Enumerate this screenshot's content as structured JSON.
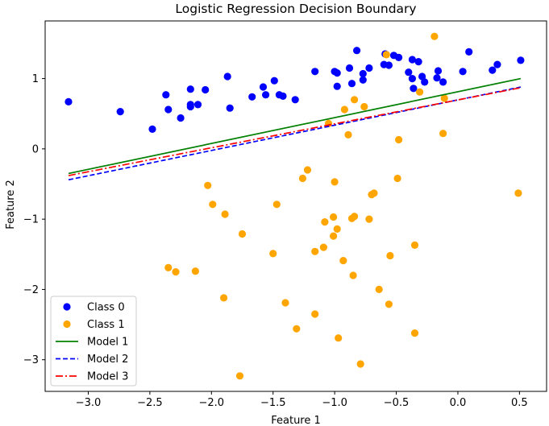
{
  "chart_data": {
    "type": "scatter",
    "title": "Logistic Regression Decision Boundary",
    "xlabel": "Feature 1",
    "ylabel": "Feature 2",
    "xlim": [
      -3.35,
      0.72
    ],
    "ylim": [
      -3.45,
      1.82
    ],
    "xticks": [
      -3.0,
      -2.5,
      -2.0,
      -1.5,
      -1.0,
      -0.5,
      0.0,
      0.5
    ],
    "xtick_labels": [
      "−3.0",
      "−2.5",
      "−2.0",
      "−1.5",
      "−1.0",
      "−0.5",
      "0.0",
      "0.5"
    ],
    "yticks": [
      1,
      0,
      -1,
      -2,
      -3
    ],
    "ytick_labels": [
      "1",
      "0",
      "−1",
      "−2",
      "−3"
    ],
    "grid": false,
    "legend": "lower-left",
    "scatter_series": [
      {
        "name": "Class 0",
        "color": "#0000ff",
        "points": [
          [
            -3.16,
            0.67
          ],
          [
            -2.74,
            0.53
          ],
          [
            -2.48,
            0.28
          ],
          [
            -2.37,
            0.77
          ],
          [
            -2.35,
            0.56
          ],
          [
            -2.25,
            0.44
          ],
          [
            -2.17,
            0.6
          ],
          [
            -2.17,
            0.63
          ],
          [
            -2.17,
            0.85
          ],
          [
            -2.11,
            0.63
          ],
          [
            -2.05,
            0.84
          ],
          [
            -1.87,
            1.03
          ],
          [
            -1.85,
            0.58
          ],
          [
            -1.67,
            0.74
          ],
          [
            -1.58,
            0.88
          ],
          [
            -1.56,
            0.77
          ],
          [
            -1.49,
            0.97
          ],
          [
            -1.45,
            0.77
          ],
          [
            -1.42,
            0.75
          ],
          [
            -1.32,
            0.7
          ],
          [
            -1.16,
            1.1
          ],
          [
            -1.0,
            1.1
          ],
          [
            -0.98,
            1.08
          ],
          [
            -0.98,
            0.89
          ],
          [
            -0.88,
            1.15
          ],
          [
            -0.86,
            0.93
          ],
          [
            -0.82,
            1.4
          ],
          [
            -0.77,
            0.98
          ],
          [
            -0.77,
            1.07
          ],
          [
            -0.72,
            1.15
          ],
          [
            -0.59,
            1.35
          ],
          [
            -0.6,
            1.2
          ],
          [
            -0.56,
            1.19
          ],
          [
            -0.52,
            1.33
          ],
          [
            -0.48,
            1.3
          ],
          [
            -0.4,
            1.09
          ],
          [
            -0.37,
            1.27
          ],
          [
            -0.37,
            1.0
          ],
          [
            -0.36,
            0.86
          ],
          [
            -0.32,
            1.24
          ],
          [
            -0.29,
            1.03
          ],
          [
            -0.27,
            0.95
          ],
          [
            -0.17,
            1.01
          ],
          [
            -0.16,
            1.11
          ],
          [
            -0.12,
            0.95
          ],
          [
            0.04,
            1.1
          ],
          [
            0.09,
            1.38
          ],
          [
            0.28,
            1.12
          ],
          [
            0.32,
            1.2
          ],
          [
            0.51,
            1.26
          ]
        ]
      },
      {
        "name": "Class 1",
        "color": "#ffa500",
        "points": [
          [
            -0.58,
            1.34
          ],
          [
            -0.19,
            1.6
          ],
          [
            -0.31,
            0.81
          ],
          [
            -0.11,
            0.72
          ],
          [
            -0.92,
            0.56
          ],
          [
            -0.84,
            0.7
          ],
          [
            -0.76,
            0.6
          ],
          [
            -1.05,
            0.36
          ],
          [
            -0.89,
            0.2
          ],
          [
            -0.12,
            0.22
          ],
          [
            -0.48,
            0.13
          ],
          [
            -2.03,
            -0.52
          ],
          [
            -1.99,
            -0.79
          ],
          [
            -1.89,
            -0.93
          ],
          [
            -1.75,
            -1.21
          ],
          [
            -1.47,
            -0.79
          ],
          [
            -1.5,
            -1.49
          ],
          [
            -1.26,
            -0.42
          ],
          [
            -1.22,
            -0.3
          ],
          [
            -1.0,
            -0.47
          ],
          [
            -1.08,
            -1.04
          ],
          [
            -1.01,
            -0.97
          ],
          [
            -0.98,
            -1.14
          ],
          [
            -1.16,
            -1.46
          ],
          [
            -1.09,
            -1.4
          ],
          [
            -1.01,
            -1.24
          ],
          [
            -0.93,
            -1.59
          ],
          [
            -0.86,
            -0.99
          ],
          [
            -0.84,
            -0.96
          ],
          [
            -0.72,
            -1.0
          ],
          [
            -0.7,
            -0.65
          ],
          [
            -0.68,
            -0.63
          ],
          [
            -0.49,
            -0.42
          ],
          [
            -0.55,
            -1.52
          ],
          [
            -0.85,
            -1.8
          ],
          [
            -0.64,
            -2.0
          ],
          [
            -0.56,
            -2.21
          ],
          [
            -0.35,
            -1.37
          ],
          [
            0.49,
            -0.63
          ],
          [
            -2.35,
            -1.69
          ],
          [
            -2.29,
            -1.75
          ],
          [
            -2.13,
            -1.74
          ],
          [
            -1.9,
            -2.12
          ],
          [
            -1.4,
            -2.19
          ],
          [
            -1.16,
            -2.35
          ],
          [
            -1.31,
            -2.56
          ],
          [
            -0.35,
            -2.62
          ],
          [
            -0.97,
            -2.69
          ],
          [
            -0.79,
            -3.06
          ],
          [
            -1.77,
            -3.23
          ]
        ]
      }
    ],
    "line_series": [
      {
        "name": "Model 1",
        "color": "#008000",
        "style": "solid",
        "x": [
          -3.16,
          0.51
        ],
        "y": [
          -0.35,
          1.0
        ]
      },
      {
        "name": "Model 2",
        "color": "#0000ff",
        "style": "dashed",
        "x": [
          -3.16,
          0.51
        ],
        "y": [
          -0.44,
          0.88
        ]
      },
      {
        "name": "Model 3",
        "color": "#ff0000",
        "style": "dashdot",
        "x": [
          -3.16,
          0.51
        ],
        "y": [
          -0.38,
          0.87
        ]
      }
    ]
  }
}
